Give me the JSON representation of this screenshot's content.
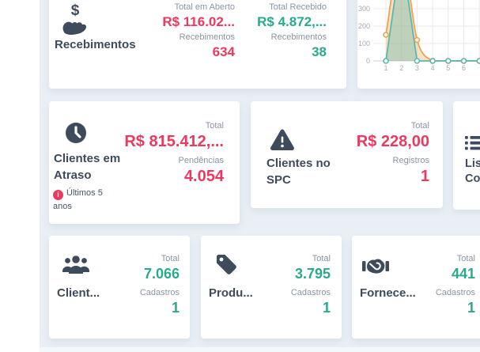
{
  "theme": {
    "colors": {
      "page": "#FFFFFF",
      "panel": "#E9EFF5",
      "card": "#FFFFFF",
      "red": "#EC3A5F",
      "teal": "#2AA98C",
      "navy": "#3E4B5C",
      "muted": "#8A94A6",
      "axis": "#A3A9B3",
      "grid": "#EAEAEC",
      "baseline": "#D8DCE1",
      "footer": "#F3F8FB"
    }
  },
  "cards": {
    "recebimentos": {
      "title": "Recebimentos",
      "icon": "hand-holding-dollar-icon",
      "icon_glyph": "$",
      "stats": [
        {
          "label": "Total em Aberto",
          "value": "R$ 116.02...",
          "tone": "red"
        },
        {
          "label": "Recebimentos",
          "value": "634",
          "tone": "red"
        },
        {
          "label": "Total Recebido",
          "value": "R$ 4.872,...",
          "tone": "teal"
        },
        {
          "label": "Recebimentos",
          "value": "38",
          "tone": "teal"
        }
      ]
    },
    "clientes_atraso": {
      "title": "Clientes em Atraso",
      "icon": "clock-icon",
      "note": "Últimos 5 anos",
      "stats": [
        {
          "label": "Total",
          "value": "R$ 815.412,...",
          "tone": "red"
        },
        {
          "label": "Pendências",
          "value": "4.054",
          "tone": "red"
        }
      ]
    },
    "clientes_spc": {
      "title": "Clientes no SPC",
      "icon": "warning-triangle-icon",
      "stats": [
        {
          "label": "Total",
          "value": "R$ 228,00",
          "tone": "red"
        },
        {
          "label": "Registros",
          "value": "1",
          "tone": "red"
        }
      ]
    },
    "partial_right": {
      "title_line1": "Lis",
      "title_line2": "Co",
      "icon": "list-icon"
    },
    "clientes": {
      "title": "Client...",
      "icon": "users-icon",
      "stats": [
        {
          "label": "Total",
          "value": "7.066",
          "tone": "teal"
        },
        {
          "label": "Cadastros",
          "value": "1",
          "tone": "teal"
        }
      ]
    },
    "produtos": {
      "title": "Produ...",
      "icon": "tag-icon",
      "stats": [
        {
          "label": "Total",
          "value": "3.795",
          "tone": "teal"
        },
        {
          "label": "Cadastros",
          "value": "1",
          "tone": "teal"
        }
      ]
    },
    "fornecedores": {
      "title": "Fornece...",
      "icon": "handshake-icon",
      "stats": [
        {
          "label": "Total",
          "value": "441",
          "tone": "teal"
        },
        {
          "label": "Cadastros",
          "value": "1",
          "tone": "teal"
        }
      ]
    }
  },
  "chart_data": {
    "type": "area",
    "x": [
      1,
      2,
      3,
      4,
      5,
      6,
      7
    ],
    "x_tick_labels": [
      "1",
      "2",
      "3",
      "4",
      "5",
      "6"
    ],
    "y_ticks": [
      0,
      100,
      200,
      300
    ],
    "y_tick_labels": [
      "0",
      "100",
      "200",
      "300"
    ],
    "ylim_visible": [
      0,
      380
    ],
    "grid": true,
    "series": [
      {
        "name": "orange-series",
        "color": "#F0A24F",
        "fill_opacity": 0.32,
        "smooth": true,
        "values": [
          150,
          620,
          120,
          0,
          0,
          0,
          0
        ],
        "note": "peak at x=2 cut off by top of viewport; value estimated"
      },
      {
        "name": "teal-series",
        "color": "#5CB8AC",
        "fill_opacity": 0.38,
        "smooth": false,
        "values": [
          0,
          620,
          0,
          0,
          0,
          0,
          0
        ],
        "note": "peak at x=2 cut off by top of viewport; value estimated"
      }
    ]
  }
}
